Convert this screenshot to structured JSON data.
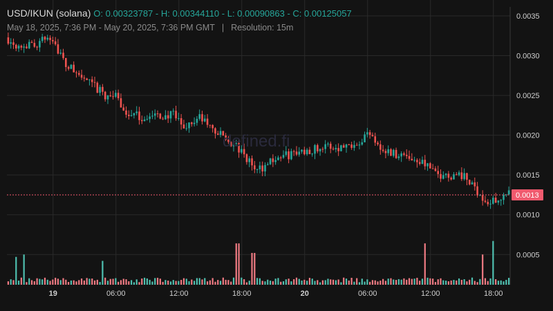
{
  "header": {
    "symbol": "USD/IKUN (solana)",
    "ohlc": "O: 0.00323787 - H: 0.00344110 - L: 0.00090863 - C: 0.00125057",
    "range": "May 18, 2025, 7:36 PM - May 20, 2025, 7:36 PM GMT",
    "separator": "|",
    "resolution": "Resolution: 15m"
  },
  "watermark": "defined.fi",
  "colors": {
    "up": "#26a69a",
    "down": "#ef5350",
    "vol_up": "#4fc0b0",
    "vol_down": "#f07b83",
    "grid": "#2a2a2a",
    "tag": "#f05a6e"
  },
  "chart_data": {
    "type": "candlestick",
    "interval": "15m",
    "y_ticks": [
      "0.0035",
      "0.0030",
      "0.0025",
      "0.0020",
      "0.0015",
      "0.0010",
      "0.0005"
    ],
    "ylim": [
      0.00012,
      0.0037
    ],
    "x_ticks": [
      {
        "label": "19",
        "bold": true,
        "hour": 4.4
      },
      {
        "label": "06:00",
        "bold": false,
        "hour": 10.4
      },
      {
        "label": "12:00",
        "bold": false,
        "hour": 16.4
      },
      {
        "label": "18:00",
        "bold": false,
        "hour": 22.4
      },
      {
        "label": "20",
        "bold": true,
        "hour": 28.4
      },
      {
        "label": "06:00",
        "bold": false,
        "hour": 34.4
      },
      {
        "label": "12:00",
        "bold": false,
        "hour": 40.4
      },
      {
        "label": "18:00",
        "bold": false,
        "hour": 46.4
      }
    ],
    "last_price": "0.0013",
    "last_price_value": 0.00125,
    "price_keypoints": [
      [
        0,
        0.00323
      ],
      [
        1.0,
        0.00315
      ],
      [
        2.5,
        0.00312
      ],
      [
        4.4,
        0.00325
      ],
      [
        5.6,
        0.0029
      ],
      [
        7.5,
        0.0027
      ],
      [
        9.5,
        0.0025
      ],
      [
        10.4,
        0.0025
      ],
      [
        11.5,
        0.00228
      ],
      [
        13.0,
        0.00222
      ],
      [
        16.0,
        0.00225
      ],
      [
        17.0,
        0.0021
      ],
      [
        18.5,
        0.00222
      ],
      [
        20.0,
        0.00205
      ],
      [
        22.0,
        0.00185
      ],
      [
        24.0,
        0.00155
      ],
      [
        25.5,
        0.0017
      ],
      [
        27.0,
        0.00175
      ],
      [
        28.5,
        0.0018
      ],
      [
        30.0,
        0.00185
      ],
      [
        32.0,
        0.00185
      ],
      [
        34.0,
        0.00195
      ],
      [
        34.8,
        0.00205
      ],
      [
        36.0,
        0.0018
      ],
      [
        38.0,
        0.00175
      ],
      [
        40.0,
        0.00165
      ],
      [
        41.0,
        0.0015
      ],
      [
        43.5,
        0.0015
      ],
      [
        45.0,
        0.0013
      ],
      [
        46.0,
        0.00112
      ],
      [
        47.0,
        0.00122
      ],
      [
        47.9,
        0.00125
      ]
    ],
    "volume_spikes": [
      {
        "hour": 0.9,
        "vol": 0.00035,
        "up": true
      },
      {
        "hour": 1.7,
        "vol": 0.00038,
        "up": true
      },
      {
        "hour": 9.2,
        "vol": 0.0003,
        "up": true
      },
      {
        "hour": 22.0,
        "vol": 0.00052,
        "up": false
      },
      {
        "hour": 23.5,
        "vol": 0.0004,
        "up": false
      },
      {
        "hour": 39.8,
        "vol": 0.00052,
        "up": false
      },
      {
        "hour": 45.4,
        "vol": 0.00038,
        "up": false
      },
      {
        "hour": 46.4,
        "vol": 0.00055,
        "up": true
      }
    ]
  }
}
